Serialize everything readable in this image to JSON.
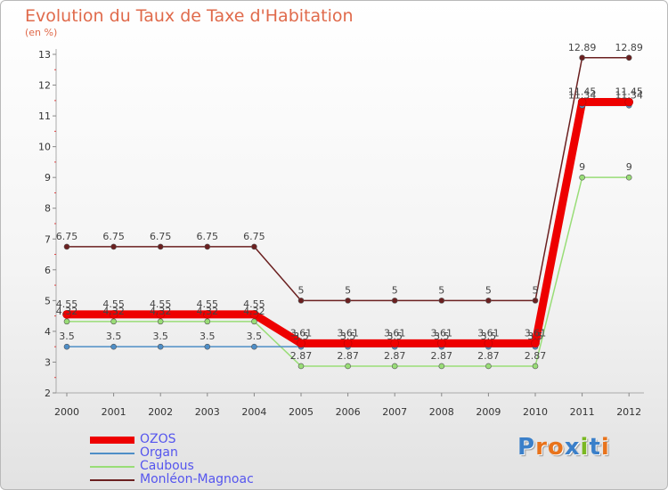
{
  "header": {
    "title": "Evolution du Taux de Taxe d'Habitation",
    "subtitle": "(en %)"
  },
  "brand": {
    "text": "Proxiti",
    "colors": [
      "#3a7fc9",
      "#e8731c",
      "#e8731c",
      "#3a7fc9",
      "#7ab822",
      "#3a7fc9",
      "#e8731c"
    ]
  },
  "chart_data": {
    "type": "line",
    "title": "Evolution du Taux de Taxe d'Habitation",
    "ylabel": "(en %)",
    "ylim": [
      2,
      13
    ],
    "yticks": [
      "2",
      "3",
      "4",
      "5",
      "6",
      "7",
      "8",
      "9",
      "10",
      "11",
      "12",
      "13"
    ],
    "x": [
      "2000",
      "2001",
      "2002",
      "2003",
      "2004",
      "2005",
      "2006",
      "2007",
      "2008",
      "2009",
      "2010",
      "2011",
      "2012"
    ],
    "grid": false,
    "legend_position": "bottom-left",
    "series": [
      {
        "name": "Monléon-Magnoac",
        "color": "#6b2020",
        "values": [
          6.75,
          6.75,
          6.75,
          6.75,
          6.75,
          5,
          5,
          5,
          5,
          5,
          5,
          12.89,
          12.89
        ],
        "labels": [
          "6.75",
          "6.75",
          "6.75",
          "6.75",
          "6.75",
          "5",
          "5",
          "5",
          "5",
          "5",
          "5",
          "12.89",
          "12.89"
        ]
      },
      {
        "name": "Caubous",
        "color": "#99dd77",
        "values": [
          4.32,
          4.32,
          4.32,
          4.32,
          4.32,
          2.87,
          2.87,
          2.87,
          2.87,
          2.87,
          2.87,
          9,
          9
        ],
        "labels": [
          "4.32",
          "4.32",
          "4.32",
          "4.32",
          "4.32",
          "2.87",
          "2.87",
          "2.87",
          "2.87",
          "2.87",
          "2.87",
          "9",
          "9"
        ]
      },
      {
        "name": "Organ",
        "color": "#4e8ec7",
        "values": [
          3.5,
          3.5,
          3.5,
          3.5,
          3.5,
          3.5,
          3.5,
          3.5,
          3.5,
          3.5,
          3.5,
          11.34,
          11.34
        ],
        "labels": [
          "3.5",
          "3.5",
          "3.5",
          "3.5",
          "3.5",
          "3.5",
          "3.5",
          "3.5",
          "3.5",
          "3.5",
          "3.5",
          "11.34",
          "11.34"
        ]
      },
      {
        "name": "OZOS",
        "color": "#ee0000",
        "values": [
          4.55,
          4.55,
          4.55,
          4.55,
          4.55,
          3.61,
          3.61,
          3.61,
          3.61,
          3.61,
          3.61,
          11.45,
          11.45
        ],
        "labels": [
          "4.55",
          "4.55",
          "4.55",
          "4.55",
          "4.55",
          "3.61",
          "3.61",
          "3.61",
          "3.61",
          "3.61",
          "3.61",
          "11.45",
          "11.45"
        ]
      }
    ],
    "legend_order": [
      "OZOS",
      "Organ",
      "Caubous",
      "Monléon-Magnoac"
    ]
  }
}
